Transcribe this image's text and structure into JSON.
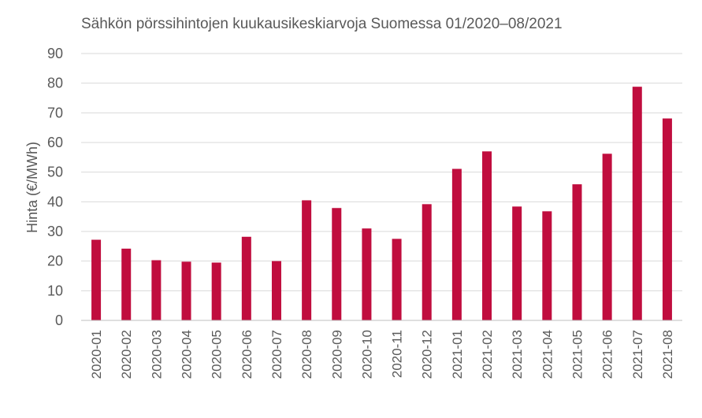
{
  "chart_data": {
    "type": "bar",
    "title": "Sähkön pörssihintojen kuukausikeskiarvoja Suomessa 01/2020–08/2021",
    "xlabel": "",
    "ylabel": "Hinta (€/MWh)",
    "ylim": [
      0,
      90
    ],
    "ytick_step": 10,
    "grid": true,
    "legend": "none",
    "bar_color": "#c00d3e",
    "categories": [
      "2020-01",
      "2020-02",
      "2020-03",
      "2020-04",
      "2020-05",
      "2020-06",
      "2020-07",
      "2020-08",
      "2020-09",
      "2020-10",
      "2020-11",
      "2020-12",
      "2021-01",
      "2021-02",
      "2021-03",
      "2021-04",
      "2021-05",
      "2021-06",
      "2021-07",
      "2021-08"
    ],
    "values": [
      27.2,
      24.2,
      20.3,
      19.8,
      19.5,
      28.2,
      20.0,
      40.5,
      37.9,
      31.0,
      27.5,
      39.2,
      51.1,
      57.0,
      38.4,
      36.8,
      45.9,
      56.2,
      78.8,
      68.1
    ]
  }
}
